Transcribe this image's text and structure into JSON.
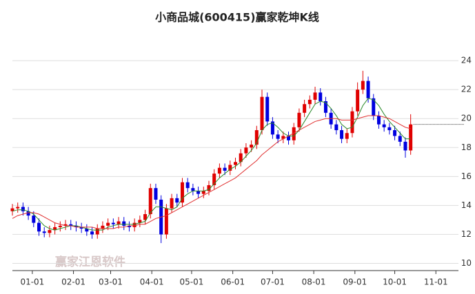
{
  "chart_data": {
    "type": "candlestick",
    "title": "小商品城(600415)赢家乾坤K线",
    "watermark": "赢家江恩软件",
    "up_color": "#e00000",
    "down_color": "#0000e0",
    "grid": true,
    "xlim": [
      0,
      336
    ],
    "ylim": [
      9.5,
      25.1
    ],
    "yticks": [
      10,
      12,
      14,
      16,
      18,
      20,
      22,
      24
    ],
    "xticks": [
      {
        "value": 15,
        "label": "01-01"
      },
      {
        "value": 46,
        "label": "02-01"
      },
      {
        "value": 74,
        "label": "03-01"
      },
      {
        "value": 105,
        "label": "04-01"
      },
      {
        "value": 135,
        "label": "05-01"
      },
      {
        "value": 166,
        "label": "06-01"
      },
      {
        "value": 196,
        "label": "07-01"
      },
      {
        "value": 227,
        "label": "08-01"
      },
      {
        "value": 258,
        "label": "09-01"
      },
      {
        "value": 288,
        "label": "10-01"
      },
      {
        "value": 319,
        "label": "11-01"
      }
    ],
    "x": [
      0,
      4,
      8,
      12,
      16,
      20,
      24,
      28,
      32,
      36,
      40,
      44,
      48,
      52,
      56,
      60,
      64,
      68,
      72,
      76,
      80,
      84,
      88,
      92,
      96,
      100,
      104,
      108,
      112,
      116,
      120,
      124,
      128,
      132,
      136,
      140,
      144,
      148,
      152,
      156,
      160,
      164,
      168,
      172,
      176,
      180,
      184,
      188,
      192,
      196,
      200,
      204,
      208,
      212,
      216,
      220,
      224,
      228,
      232,
      236,
      240,
      244,
      248,
      252,
      256,
      260,
      264,
      268,
      272,
      276,
      280,
      284,
      288,
      292,
      296,
      300
    ],
    "open": [
      13.6,
      13.8,
      13.9,
      13.6,
      13.3,
      12.8,
      12.2,
      12.1,
      12.3,
      12.5,
      12.6,
      12.7,
      12.6,
      12.5,
      12.4,
      12.2,
      12.0,
      12.4,
      12.6,
      12.8,
      12.7,
      12.9,
      12.6,
      12.5,
      12.8,
      13.0,
      13.4,
      15.2,
      14.4,
      12.0,
      13.8,
      14.5,
      14.2,
      15.6,
      15.2,
      15.0,
      14.8,
      15.0,
      15.4,
      16.2,
      16.6,
      16.4,
      16.8,
      17.0,
      17.6,
      18.0,
      18.2,
      19.2,
      21.5,
      19.8,
      18.9,
      18.6,
      18.8,
      18.5,
      19.4,
      20.4,
      21.0,
      21.3,
      21.8,
      21.2,
      20.4,
      19.6,
      19.2,
      18.6,
      19.0,
      20.5,
      22.0,
      22.6,
      21.4,
      20.2,
      19.6,
      19.4,
      19.2,
      18.8,
      18.4,
      17.8
    ],
    "high": [
      14.1,
      14.2,
      14.2,
      13.9,
      13.6,
      13.1,
      12.5,
      12.6,
      12.8,
      12.9,
      13.0,
      13.0,
      12.9,
      12.8,
      12.7,
      12.5,
      12.7,
      12.9,
      13.1,
      13.1,
      13.2,
      13.2,
      12.9,
      13.1,
      13.3,
      13.7,
      15.5,
      15.5,
      14.7,
      14.1,
      14.8,
      14.8,
      15.9,
      15.9,
      15.5,
      15.3,
      15.3,
      15.7,
      16.5,
      16.9,
      16.9,
      17.1,
      17.3,
      17.9,
      18.3,
      18.5,
      19.5,
      22.0,
      21.8,
      20.1,
      19.2,
      19.1,
      19.1,
      19.7,
      20.7,
      21.3,
      21.6,
      22.2,
      22.1,
      21.5,
      20.7,
      19.9,
      19.5,
      19.3,
      20.8,
      22.5,
      23.3,
      22.9,
      21.7,
      20.5,
      19.9,
      19.7,
      19.5,
      19.1,
      18.7,
      20.3
    ],
    "low": [
      13.3,
      13.5,
      13.3,
      13.0,
      12.5,
      11.9,
      11.8,
      11.8,
      12.0,
      12.2,
      12.3,
      12.3,
      12.2,
      12.1,
      11.9,
      11.7,
      11.7,
      12.1,
      12.3,
      12.4,
      12.4,
      12.3,
      12.2,
      12.2,
      12.5,
      12.7,
      13.1,
      14.1,
      11.4,
      11.7,
      13.5,
      13.9,
      13.9,
      14.9,
      14.7,
      14.5,
      14.5,
      14.7,
      15.1,
      15.9,
      16.1,
      16.1,
      16.5,
      16.7,
      17.3,
      17.7,
      17.9,
      18.9,
      19.5,
      18.6,
      18.3,
      18.3,
      18.2,
      18.2,
      19.1,
      20.1,
      20.7,
      21.0,
      20.9,
      20.1,
      19.3,
      18.9,
      18.3,
      18.3,
      18.7,
      20.2,
      21.7,
      21.1,
      19.9,
      19.3,
      19.1,
      18.9,
      18.5,
      18.1,
      17.3,
      17.5
    ],
    "close": [
      13.8,
      13.9,
      13.6,
      13.3,
      12.8,
      12.2,
      12.1,
      12.3,
      12.5,
      12.6,
      12.7,
      12.6,
      12.5,
      12.4,
      12.2,
      12.0,
      12.4,
      12.6,
      12.8,
      12.7,
      12.9,
      12.6,
      12.5,
      12.8,
      13.0,
      13.4,
      15.2,
      14.4,
      12.0,
      13.8,
      14.5,
      14.2,
      15.6,
      15.2,
      15.0,
      14.8,
      15.0,
      15.4,
      16.2,
      16.6,
      16.4,
      16.8,
      17.0,
      17.6,
      18.0,
      18.2,
      19.2,
      21.5,
      19.8,
      18.9,
      18.6,
      18.8,
      18.5,
      19.4,
      20.4,
      21.0,
      21.3,
      21.8,
      21.2,
      20.4,
      19.6,
      19.2,
      18.6,
      19.0,
      20.5,
      22.0,
      22.6,
      21.4,
      20.2,
      19.6,
      19.4,
      19.2,
      18.8,
      18.4,
      17.8,
      19.6
    ],
    "series": [
      {
        "color": "#2a8a2a",
        "values": [
          13.6,
          13.7,
          13.7,
          13.6,
          13.4,
          13.0,
          12.6,
          12.4,
          12.3,
          12.4,
          12.5,
          12.6,
          12.6,
          12.5,
          12.4,
          12.3,
          12.3,
          12.3,
          12.5,
          12.6,
          12.7,
          12.7,
          12.7,
          12.7,
          12.8,
          12.9,
          13.5,
          13.9,
          13.9,
          13.8,
          13.7,
          13.9,
          14.5,
          14.8,
          15.0,
          15.0,
          15.0,
          15.1,
          15.5,
          15.9,
          16.2,
          16.5,
          16.7,
          17.0,
          17.4,
          17.8,
          18.3,
          19.2,
          19.6,
          19.7,
          19.4,
          19.0,
          18.8,
          18.8,
          19.2,
          19.8,
          20.4,
          21.0,
          21.2,
          21.1,
          20.7,
          20.2,
          19.6,
          19.3,
          19.4,
          20.1,
          20.9,
          21.4,
          21.3,
          20.9,
          20.3,
          19.8,
          19.4,
          19.0,
          18.6,
          18.6
        ]
      },
      {
        "color": "#e03030",
        "values": [
          13.1,
          13.3,
          13.4,
          13.5,
          13.5,
          13.4,
          13.2,
          13.0,
          12.8,
          12.7,
          12.6,
          12.6,
          12.5,
          12.5,
          12.5,
          12.5,
          12.4,
          12.4,
          12.4,
          12.4,
          12.5,
          12.5,
          12.6,
          12.6,
          12.7,
          12.7,
          12.9,
          13.1,
          13.2,
          13.3,
          13.5,
          13.7,
          13.9,
          14.1,
          14.3,
          14.5,
          14.7,
          14.9,
          15.1,
          15.3,
          15.5,
          15.7,
          15.9,
          16.2,
          16.5,
          16.8,
          17.1,
          17.5,
          17.8,
          18.1,
          18.4,
          18.6,
          18.8,
          19.0,
          19.2,
          19.4,
          19.6,
          19.8,
          19.9,
          20.0,
          20.0,
          20.0,
          19.9,
          19.9,
          19.9,
          20.0,
          20.1,
          20.2,
          20.2,
          20.2,
          20.1,
          20.0,
          19.8,
          19.6,
          19.4,
          19.3
        ]
      }
    ]
  }
}
